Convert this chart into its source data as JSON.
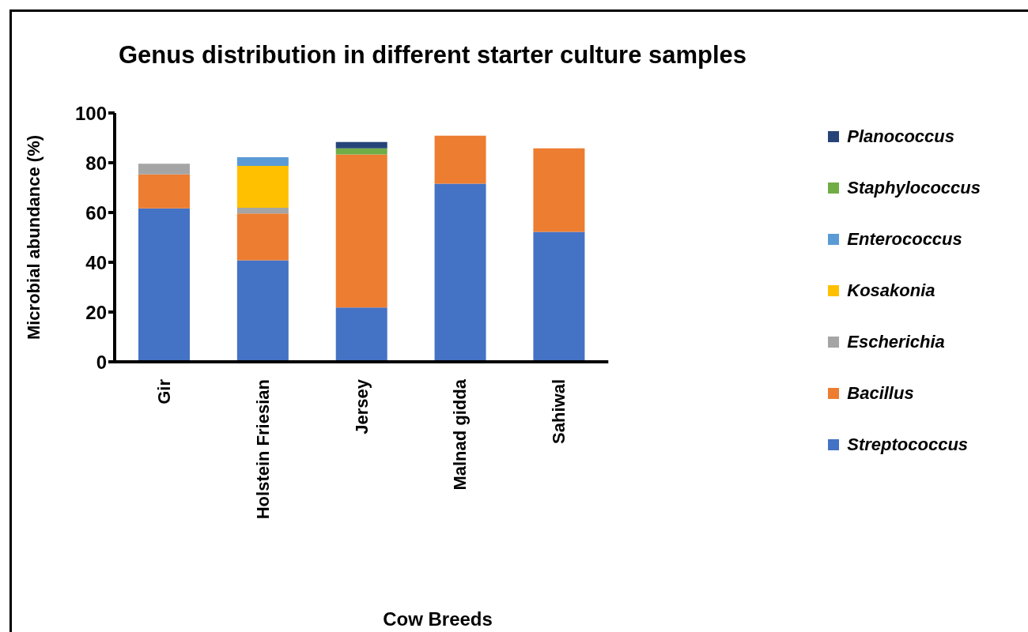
{
  "chart_data": {
    "type": "bar",
    "stacked": true,
    "title": "Genus distribution in different starter culture samples",
    "xlabel": "Cow Breeds",
    "ylabel": "Microbial abundance (%)",
    "categories": [
      "Gir",
      "Holstein Friesian",
      "Jersey",
      "Malnad gidda",
      "Sahiwal"
    ],
    "ylim": [
      0,
      100
    ],
    "yticks": [
      0,
      20,
      40,
      60,
      80,
      100
    ],
    "grid": false,
    "legend": "right",
    "series": [
      {
        "name": "Streptococcus",
        "color": "#4472c4",
        "values": [
          61.7,
          40.8,
          21.8,
          71.6,
          52.2
        ]
      },
      {
        "name": "Bacillus",
        "color": "#ed7d31",
        "values": [
          13.6,
          18.8,
          61.5,
          19.3,
          33.6
        ]
      },
      {
        "name": "Escherichia",
        "color": "#a5a5a5",
        "values": [
          4.3,
          2.3,
          null,
          null,
          null
        ]
      },
      {
        "name": "Kosakonia",
        "color": "#ffc000",
        "values": [
          null,
          16.8,
          null,
          null,
          null
        ]
      },
      {
        "name": "Enterococcus",
        "color": "#5b9bd5",
        "values": [
          null,
          3.5,
          null,
          null,
          null
        ]
      },
      {
        "name": "Staphylococcus",
        "color": "#70ad47",
        "values": [
          null,
          null,
          2.5,
          null,
          null
        ]
      },
      {
        "name": "Planococcus",
        "color": "#264478",
        "values": [
          null,
          null,
          2.5,
          null,
          null
        ]
      }
    ]
  }
}
